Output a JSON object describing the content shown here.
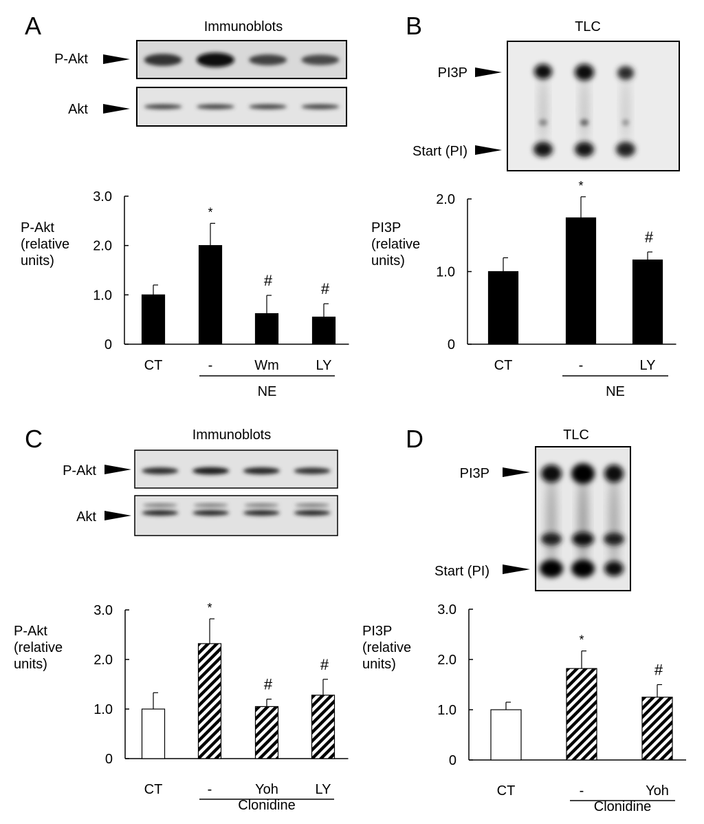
{
  "colors": {
    "ink": "#000000",
    "bar_solid": "#000000",
    "bar_open": "#ffffff",
    "blot_bg": "#d9d9d9",
    "tlc_bg": "#ececec"
  },
  "panels": [
    {
      "letter": "A",
      "header": "Immunoblots",
      "images": [
        {
          "label": "P-Akt",
          "type": "blot",
          "lanes": [
            0.62,
            0.95,
            0.45,
            0.4
          ]
        },
        {
          "label": "Akt",
          "type": "blot",
          "lanes": [
            0.45,
            0.45,
            0.45,
            0.45
          ]
        }
      ]
    },
    {
      "letter": "B",
      "header": "TLC",
      "images": [
        {
          "label": "PI3P",
          "type": "tlc_mark"
        },
        {
          "label": "Start (PI)",
          "type": "tlc_mark"
        }
      ]
    },
    {
      "letter": "C",
      "header": "Immunoblots",
      "images": [
        {
          "label": "P-Akt",
          "type": "blot",
          "lanes": [
            0.65,
            0.8,
            0.7,
            0.6
          ]
        },
        {
          "label": "Akt",
          "type": "blot",
          "lanes": [
            0.7,
            0.7,
            0.7,
            0.7
          ]
        }
      ]
    },
    {
      "letter": "D",
      "header": "TLC",
      "images": [
        {
          "label": "PI3P",
          "type": "tlc_mark"
        },
        {
          "label": "Start (PI)",
          "type": "tlc_mark"
        }
      ]
    }
  ],
  "chart_data": [
    {
      "panel": "A",
      "type": "bar",
      "ylabel": [
        "P-Akt",
        "(relative",
        "units)"
      ],
      "ylim": [
        0,
        3.0
      ],
      "yticks": [
        "0",
        "1.0",
        "2.0",
        "3.0"
      ],
      "categories": [
        "CT",
        "-",
        "Wm",
        "LY"
      ],
      "values": [
        1.0,
        2.0,
        0.62,
        0.55
      ],
      "errors": [
        0.2,
        0.45,
        0.37,
        0.27
      ],
      "fills": [
        "solid",
        "solid",
        "solid",
        "solid"
      ],
      "annotations": [
        "",
        "*",
        "#",
        "#"
      ],
      "group_label": "NE",
      "group_categories": [
        1,
        3
      ]
    },
    {
      "panel": "B",
      "type": "bar",
      "ylabel": [
        "PI3P",
        "(relative",
        "units)"
      ],
      "ylim": [
        0,
        2.0
      ],
      "yticks": [
        "0",
        "1.0",
        "2.0"
      ],
      "categories": [
        "CT",
        "-",
        "LY"
      ],
      "values": [
        1.0,
        1.74,
        1.16
      ],
      "errors": [
        0.19,
        0.29,
        0.11
      ],
      "fills": [
        "solid",
        "solid",
        "solid"
      ],
      "annotations": [
        "",
        "*",
        "#"
      ],
      "group_label": "NE",
      "group_categories": [
        1,
        2
      ]
    },
    {
      "panel": "C",
      "type": "bar",
      "ylabel": [
        "P-Akt",
        "(relative",
        "units)"
      ],
      "ylim": [
        0,
        3.0
      ],
      "yticks": [
        "0",
        "1.0",
        "2.0",
        "3.0"
      ],
      "categories": [
        "CT",
        "-",
        "Yoh",
        "LY"
      ],
      "values": [
        1.0,
        2.32,
        1.05,
        1.28
      ],
      "errors": [
        0.33,
        0.5,
        0.15,
        0.32
      ],
      "fills": [
        "open",
        "hatched",
        "hatched",
        "hatched"
      ],
      "annotations": [
        "",
        "*",
        "#",
        "#"
      ],
      "group_label": "Clonidine",
      "group_categories": [
        1,
        3
      ]
    },
    {
      "panel": "D",
      "type": "bar",
      "ylabel": [
        "PI3P",
        "(relative",
        "units)"
      ],
      "ylim": [
        0,
        3.0
      ],
      "yticks": [
        "0",
        "1.0",
        "2.0",
        "3.0"
      ],
      "categories": [
        "CT",
        "-",
        "Yoh"
      ],
      "values": [
        1.0,
        1.82,
        1.25
      ],
      "errors": [
        0.15,
        0.35,
        0.25
      ],
      "fills": [
        "open",
        "hatched",
        "hatched"
      ],
      "annotations": [
        "",
        "*",
        "#"
      ],
      "group_label": "Clonidine",
      "group_categories": [
        1,
        2
      ]
    }
  ]
}
